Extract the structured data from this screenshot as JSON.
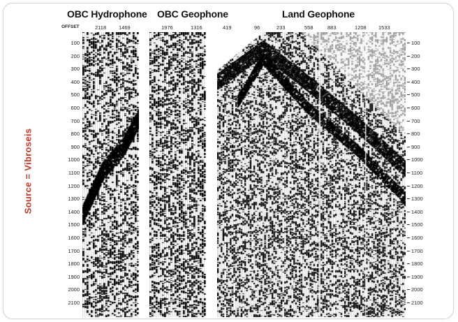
{
  "side_label": "Source = Vibroseis",
  "panels": [
    {
      "id": "obc-hydrophone",
      "title": "OBC Hydrophone",
      "offsets": [
        "2118",
        "1469"
      ]
    },
    {
      "id": "obc-geophone",
      "title": "OBC Geophone",
      "offsets": [
        "1976",
        "1316"
      ]
    },
    {
      "id": "land-geophone",
      "title": "Land Geophone",
      "offsets": [
        "419",
        "96",
        "233",
        "558",
        "883",
        "1208",
        "1533"
      ]
    }
  ],
  "offset_axis_label": "OFFSET",
  "time_ticks": [
    "100",
    "200",
    "300",
    "400",
    "500",
    "600",
    "700",
    "800",
    "900",
    "1000",
    "1100",
    "1200",
    "1300",
    "1400",
    "1500",
    "1600",
    "1700",
    "1800",
    "1900",
    "2000",
    "2100"
  ],
  "colors": {
    "trace": "#000000",
    "label_accent": "#c0392b"
  }
}
